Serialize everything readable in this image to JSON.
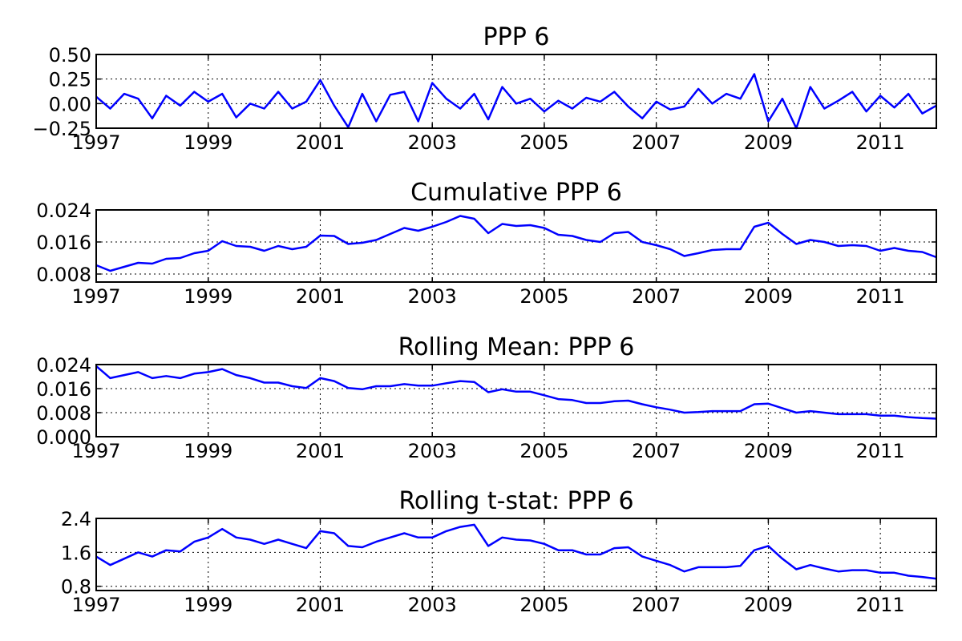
{
  "figure": {
    "line_color": "#0000ff"
  },
  "chart_data": [
    {
      "type": "line",
      "title": "PPP 6",
      "xlabel": "",
      "ylabel": "",
      "xlim": [
        1997,
        2012
      ],
      "ylim": [
        -0.25,
        0.5
      ],
      "x_ticks": [
        "1997",
        "1999",
        "2001",
        "2003",
        "2005",
        "2007",
        "2009",
        "2011"
      ],
      "y_ticks": [
        "−0.25",
        "0.00",
        "0.25",
        "0.50"
      ],
      "grid": true,
      "series": [
        {
          "x": [
            1997.0,
            1997.25,
            1997.5,
            1997.75,
            1998.0,
            1998.25,
            1998.5,
            1998.75,
            1999.0,
            1999.25,
            1999.5,
            1999.75,
            2000.0,
            2000.25,
            2000.5,
            2000.75,
            2001.0,
            2001.25,
            2001.5,
            2001.75,
            2002.0,
            2002.25,
            2002.5,
            2002.75,
            2003.0,
            2003.25,
            2003.5,
            2003.75,
            2004.0,
            2004.25,
            2004.5,
            2004.75,
            2005.0,
            2005.25,
            2005.5,
            2005.75,
            2006.0,
            2006.25,
            2006.5,
            2006.75,
            2007.0,
            2007.25,
            2007.5,
            2007.75,
            2008.0,
            2008.25,
            2008.5,
            2008.75,
            2009.0,
            2009.25,
            2009.5,
            2009.75,
            2010.0,
            2010.25,
            2010.5,
            2010.75,
            2011.0,
            2011.25,
            2011.5,
            2011.75,
            2012.0
          ],
          "y": [
            0.07,
            -0.05,
            0.1,
            0.05,
            -0.15,
            0.08,
            -0.02,
            0.12,
            0.02,
            0.1,
            -0.14,
            0.0,
            -0.05,
            0.12,
            -0.05,
            0.02,
            0.24,
            -0.02,
            -0.24,
            0.1,
            -0.18,
            0.09,
            0.12,
            -0.18,
            0.21,
            0.05,
            -0.05,
            0.1,
            -0.16,
            0.17,
            0.0,
            0.05,
            -0.08,
            0.03,
            -0.05,
            0.06,
            0.02,
            0.12,
            -0.03,
            -0.15,
            0.02,
            -0.06,
            -0.03,
            0.15,
            0.0,
            0.1,
            0.05,
            0.3,
            -0.18,
            0.05,
            -0.25,
            0.17,
            -0.05,
            0.03,
            0.12,
            -0.08,
            0.08,
            -0.04,
            0.1,
            -0.1,
            -0.02
          ]
        }
      ]
    },
    {
      "type": "line",
      "title": "Cumulative PPP 6",
      "xlabel": "",
      "ylabel": "",
      "xlim": [
        1997,
        2012
      ],
      "ylim": [
        0.006,
        0.024
      ],
      "x_ticks": [
        "1997",
        "1999",
        "2001",
        "2003",
        "2005",
        "2007",
        "2009",
        "2011"
      ],
      "y_ticks": [
        "0.008",
        "0.016",
        "0.024"
      ],
      "grid": true,
      "series": [
        {
          "x": [
            1997.0,
            1997.25,
            1997.5,
            1997.75,
            1998.0,
            1998.25,
            1998.5,
            1998.75,
            1999.0,
            1999.25,
            1999.5,
            1999.75,
            2000.0,
            2000.25,
            2000.5,
            2000.75,
            2001.0,
            2001.25,
            2001.5,
            2001.75,
            2002.0,
            2002.25,
            2002.5,
            2002.75,
            2003.0,
            2003.25,
            2003.5,
            2003.75,
            2004.0,
            2004.25,
            2004.5,
            2004.75,
            2005.0,
            2005.25,
            2005.5,
            2005.75,
            2006.0,
            2006.25,
            2006.5,
            2006.75,
            2007.0,
            2007.25,
            2007.5,
            2007.75,
            2008.0,
            2008.25,
            2008.5,
            2008.75,
            2009.0,
            2009.25,
            2009.5,
            2009.75,
            2010.0,
            2010.25,
            2010.5,
            2010.75,
            2011.0,
            2011.25,
            2011.5,
            2011.75,
            2012.0
          ],
          "y": [
            0.0102,
            0.0088,
            0.0098,
            0.0108,
            0.0106,
            0.0118,
            0.012,
            0.0132,
            0.0138,
            0.0162,
            0.015,
            0.0148,
            0.0138,
            0.015,
            0.0142,
            0.0148,
            0.0176,
            0.0175,
            0.0155,
            0.0158,
            0.0165,
            0.018,
            0.0195,
            0.0188,
            0.0198,
            0.021,
            0.0225,
            0.0218,
            0.0182,
            0.0205,
            0.02,
            0.0202,
            0.0195,
            0.0178,
            0.0175,
            0.0165,
            0.016,
            0.0182,
            0.0185,
            0.016,
            0.0152,
            0.0142,
            0.0125,
            0.0132,
            0.014,
            0.0142,
            0.0142,
            0.0198,
            0.0208,
            0.018,
            0.0155,
            0.0165,
            0.016,
            0.015,
            0.0152,
            0.015,
            0.0138,
            0.0145,
            0.0138,
            0.0135,
            0.0122
          ]
        }
      ]
    },
    {
      "type": "line",
      "title": "Rolling Mean: PPP 6",
      "xlabel": "",
      "ylabel": "",
      "xlim": [
        1997,
        2012
      ],
      "ylim": [
        0.0,
        0.024
      ],
      "x_ticks": [
        "1997",
        "1999",
        "2001",
        "2003",
        "2005",
        "2007",
        "2009",
        "2011"
      ],
      "y_ticks": [
        "0.000",
        "0.008",
        "0.016",
        "0.024"
      ],
      "grid": true,
      "series": [
        {
          "x": [
            1997.0,
            1997.25,
            1997.5,
            1997.75,
            1998.0,
            1998.25,
            1998.5,
            1998.75,
            1999.0,
            1999.25,
            1999.5,
            1999.75,
            2000.0,
            2000.25,
            2000.5,
            2000.75,
            2001.0,
            2001.25,
            2001.5,
            2001.75,
            2002.0,
            2002.25,
            2002.5,
            2002.75,
            2003.0,
            2003.25,
            2003.5,
            2003.75,
            2004.0,
            2004.25,
            2004.5,
            2004.75,
            2005.0,
            2005.25,
            2005.5,
            2005.75,
            2006.0,
            2006.25,
            2006.5,
            2006.75,
            2007.0,
            2007.25,
            2007.5,
            2007.75,
            2008.0,
            2008.25,
            2008.5,
            2008.75,
            2009.0,
            2009.25,
            2009.5,
            2009.75,
            2010.0,
            2010.25,
            2010.5,
            2010.75,
            2011.0,
            2011.25,
            2011.5,
            2011.75,
            2012.0
          ],
          "y": [
            0.0235,
            0.0195,
            0.0205,
            0.0215,
            0.0195,
            0.0202,
            0.0195,
            0.021,
            0.0215,
            0.0225,
            0.0205,
            0.0195,
            0.018,
            0.018,
            0.0168,
            0.0162,
            0.0195,
            0.0185,
            0.0162,
            0.0158,
            0.0168,
            0.0168,
            0.0175,
            0.017,
            0.017,
            0.0178,
            0.0185,
            0.0182,
            0.0148,
            0.0158,
            0.015,
            0.015,
            0.0138,
            0.0125,
            0.0122,
            0.0112,
            0.0112,
            0.0118,
            0.012,
            0.0108,
            0.0098,
            0.009,
            0.008,
            0.0082,
            0.0085,
            0.0085,
            0.0085,
            0.0108,
            0.011,
            0.0095,
            0.008,
            0.0085,
            0.008,
            0.0075,
            0.0075,
            0.0075,
            0.007,
            0.007,
            0.0065,
            0.0062,
            0.006
          ]
        }
      ]
    },
    {
      "type": "line",
      "title": "Rolling t-stat: PPP 6",
      "xlabel": "",
      "ylabel": "",
      "xlim": [
        1997,
        2012
      ],
      "ylim": [
        0.7,
        2.4
      ],
      "x_ticks": [
        "1997",
        "1999",
        "2001",
        "2003",
        "2005",
        "2007",
        "2009",
        "2011"
      ],
      "y_ticks": [
        "0.8",
        "1.6",
        "2.4"
      ],
      "grid": true,
      "series": [
        {
          "x": [
            1997.0,
            1997.25,
            1997.5,
            1997.75,
            1998.0,
            1998.25,
            1998.5,
            1998.75,
            1999.0,
            1999.25,
            1999.5,
            1999.75,
            2000.0,
            2000.25,
            2000.5,
            2000.75,
            2001.0,
            2001.25,
            2001.5,
            2001.75,
            2002.0,
            2002.25,
            2002.5,
            2002.75,
            2003.0,
            2003.25,
            2003.5,
            2003.75,
            2004.0,
            2004.25,
            2004.5,
            2004.75,
            2005.0,
            2005.25,
            2005.5,
            2005.75,
            2006.0,
            2006.25,
            2006.5,
            2006.75,
            2007.0,
            2007.25,
            2007.5,
            2007.75,
            2008.0,
            2008.25,
            2008.5,
            2008.75,
            2009.0,
            2009.25,
            2009.5,
            2009.75,
            2010.0,
            2010.25,
            2010.5,
            2010.75,
            2011.0,
            2011.25,
            2011.5,
            2011.75,
            2012.0
          ],
          "y": [
            1.5,
            1.3,
            1.45,
            1.6,
            1.5,
            1.65,
            1.62,
            1.85,
            1.95,
            2.15,
            1.95,
            1.9,
            1.8,
            1.9,
            1.8,
            1.7,
            2.1,
            2.05,
            1.75,
            1.72,
            1.85,
            1.95,
            2.05,
            1.95,
            1.95,
            2.1,
            2.2,
            2.25,
            1.75,
            1.95,
            1.9,
            1.88,
            1.8,
            1.65,
            1.65,
            1.55,
            1.55,
            1.7,
            1.72,
            1.5,
            1.4,
            1.3,
            1.15,
            1.25,
            1.25,
            1.25,
            1.28,
            1.65,
            1.75,
            1.45,
            1.2,
            1.3,
            1.22,
            1.15,
            1.18,
            1.18,
            1.12,
            1.12,
            1.05,
            1.02,
            0.98
          ]
        }
      ]
    }
  ]
}
